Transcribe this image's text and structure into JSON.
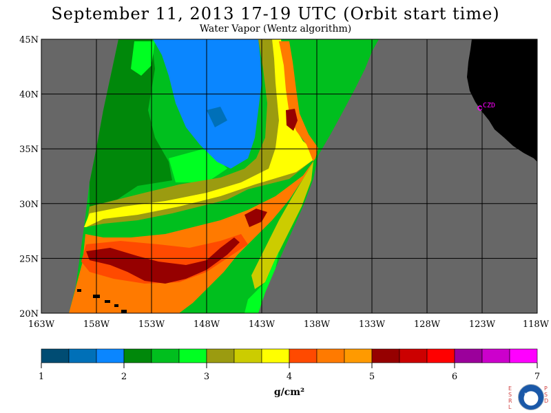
{
  "header": {
    "title": "September 11, 2013  17-19 UTC  (Orbit start time)",
    "subtitle": "Water Vapor (Wentz algorithm)"
  },
  "map": {
    "lat_labels": [
      "45N",
      "40N",
      "35N",
      "30N",
      "25N",
      "20N"
    ],
    "lon_labels": [
      "163W",
      "158W",
      "153W",
      "148W",
      "143W",
      "138W",
      "133W",
      "128W",
      "123W",
      "118W"
    ],
    "station_label": "CZD",
    "colors": {
      "no_data": "#676767",
      "land": "#000000",
      "station": "#ff00ff",
      "grid": "#000000"
    }
  },
  "colorbar": {
    "tick_labels": [
      "1",
      "2",
      "3",
      "4",
      "5",
      "6",
      "7"
    ],
    "units": "g/cm²",
    "colors": [
      "#004c73",
      "#0070b8",
      "#0a86ff",
      "#00880a",
      "#00bf1e",
      "#00ff22",
      "#9b9b10",
      "#cccc00",
      "#ffff00",
      "#ff4a00",
      "#ff7a00",
      "#ff9a00",
      "#960000",
      "#cc0000",
      "#ff0000",
      "#9b009b",
      "#cc00cc",
      "#ff00ff"
    ]
  },
  "logo": {
    "left_text": [
      "E",
      "S",
      "R",
      "L"
    ],
    "right_text": [
      "P",
      "S",
      "D"
    ],
    "name": "NOAA"
  }
}
